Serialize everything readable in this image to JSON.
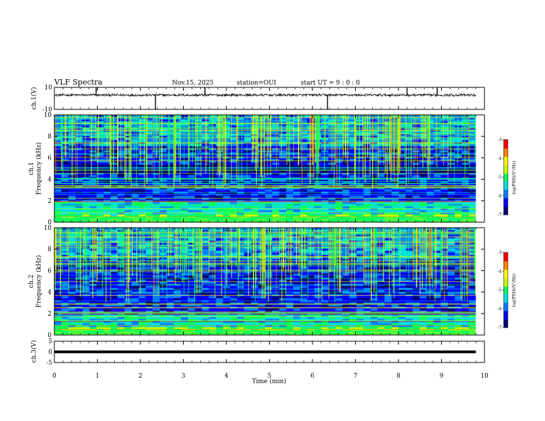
{
  "chart_data": {
    "type": "heatmap",
    "title": "VLF Spectra",
    "date": "Nov.15, 2025",
    "station": "station=OUI",
    "start_ut": "start UT =  9 : 0  : 0",
    "xlabel": "Time (min)",
    "xlim": [
      0,
      10
    ],
    "xticks": [
      "0",
      "1",
      "2",
      "3",
      "4",
      "5",
      "6",
      "7",
      "8",
      "9",
      "10"
    ],
    "panels": [
      {
        "id": "ch1-waveform",
        "type": "line",
        "ylabel": "ch.1(V)",
        "ylim": [
          -10,
          10
        ],
        "yticks": [
          "10",
          "-10"
        ],
        "baseline_v": 3.0,
        "spike_minutes": [
          0.97,
          2.35,
          3.5,
          6.35,
          8.2,
          8.9
        ]
      },
      {
        "id": "ch1-spectrogram",
        "type": "heatmap",
        "ylabel_line1": "ch.1",
        "ylabel_line2": "Frequency (kHz)",
        "ylim": [
          0,
          10
        ],
        "yticks": [
          "0",
          "2",
          "4",
          "6",
          "8",
          "10"
        ],
        "data_end_min": 9.8
      },
      {
        "id": "ch2-spectrogram",
        "type": "heatmap",
        "ylabel_line1": "ch.2",
        "ylabel_line2": "Frequency (kHz)",
        "ylim": [
          0,
          10
        ],
        "yticks": [
          "0",
          "2",
          "4",
          "6",
          "8",
          "10"
        ],
        "data_end_min": 9.8
      },
      {
        "id": "ch3-waveform",
        "type": "line",
        "ylabel": "ch.3(V)",
        "ylim": [
          -5,
          5
        ],
        "yticks": [
          "5",
          "0",
          "-5"
        ],
        "baseline_v": 0.0,
        "data_end_min": 9.8
      }
    ],
    "colorbar": {
      "label": "log(PSD)(V²/Hz)",
      "range": [
        -7,
        -3
      ],
      "ticks": [
        "-3",
        "-4",
        "-5",
        "-6",
        "-7"
      ],
      "colors": [
        "#00007a",
        "#0000ff",
        "#0080ff",
        "#00e0e0",
        "#00ff60",
        "#c0ff00",
        "#ffff00",
        "#ff8000",
        "#ff0000",
        "#ffffff"
      ]
    }
  }
}
